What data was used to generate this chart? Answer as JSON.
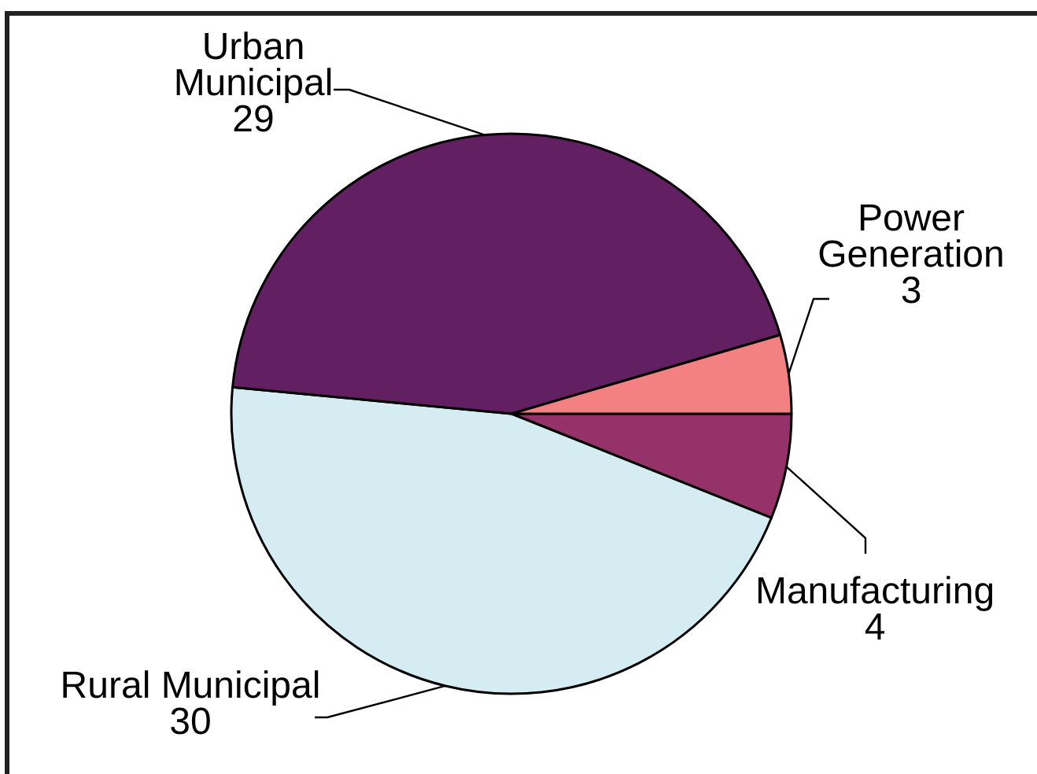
{
  "chart_data": {
    "type": "pie",
    "categories": [
      "Manufacturing",
      "Rural Municipal",
      "Urban Municipal",
      "Power Generation"
    ],
    "values": [
      4,
      30,
      29,
      3
    ],
    "colors": [
      "#96326a",
      "#d5ecf3",
      "#621f61",
      "#f38181"
    ],
    "data_labels": true,
    "legend": false
  }
}
